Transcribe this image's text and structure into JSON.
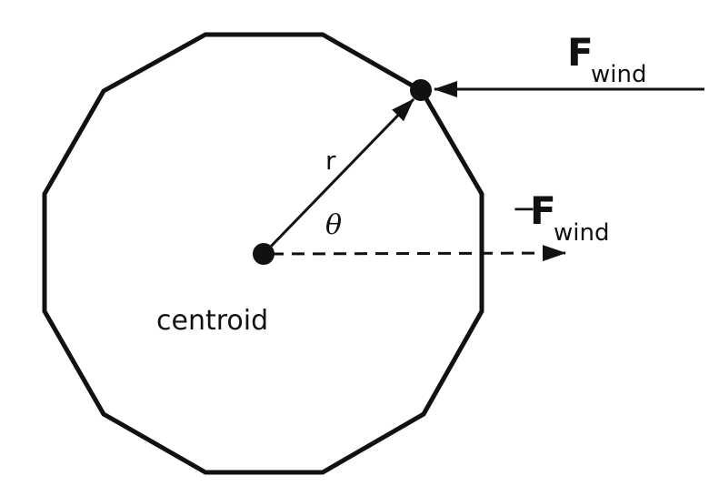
{
  "labels": {
    "radius": "r",
    "angle": "θ",
    "centroid": "centroid",
    "force_symbol": "F",
    "force_subscript": "wind",
    "neg_sign": "−"
  },
  "colors": {
    "ink": "#111111",
    "background": "#ffffff"
  }
}
